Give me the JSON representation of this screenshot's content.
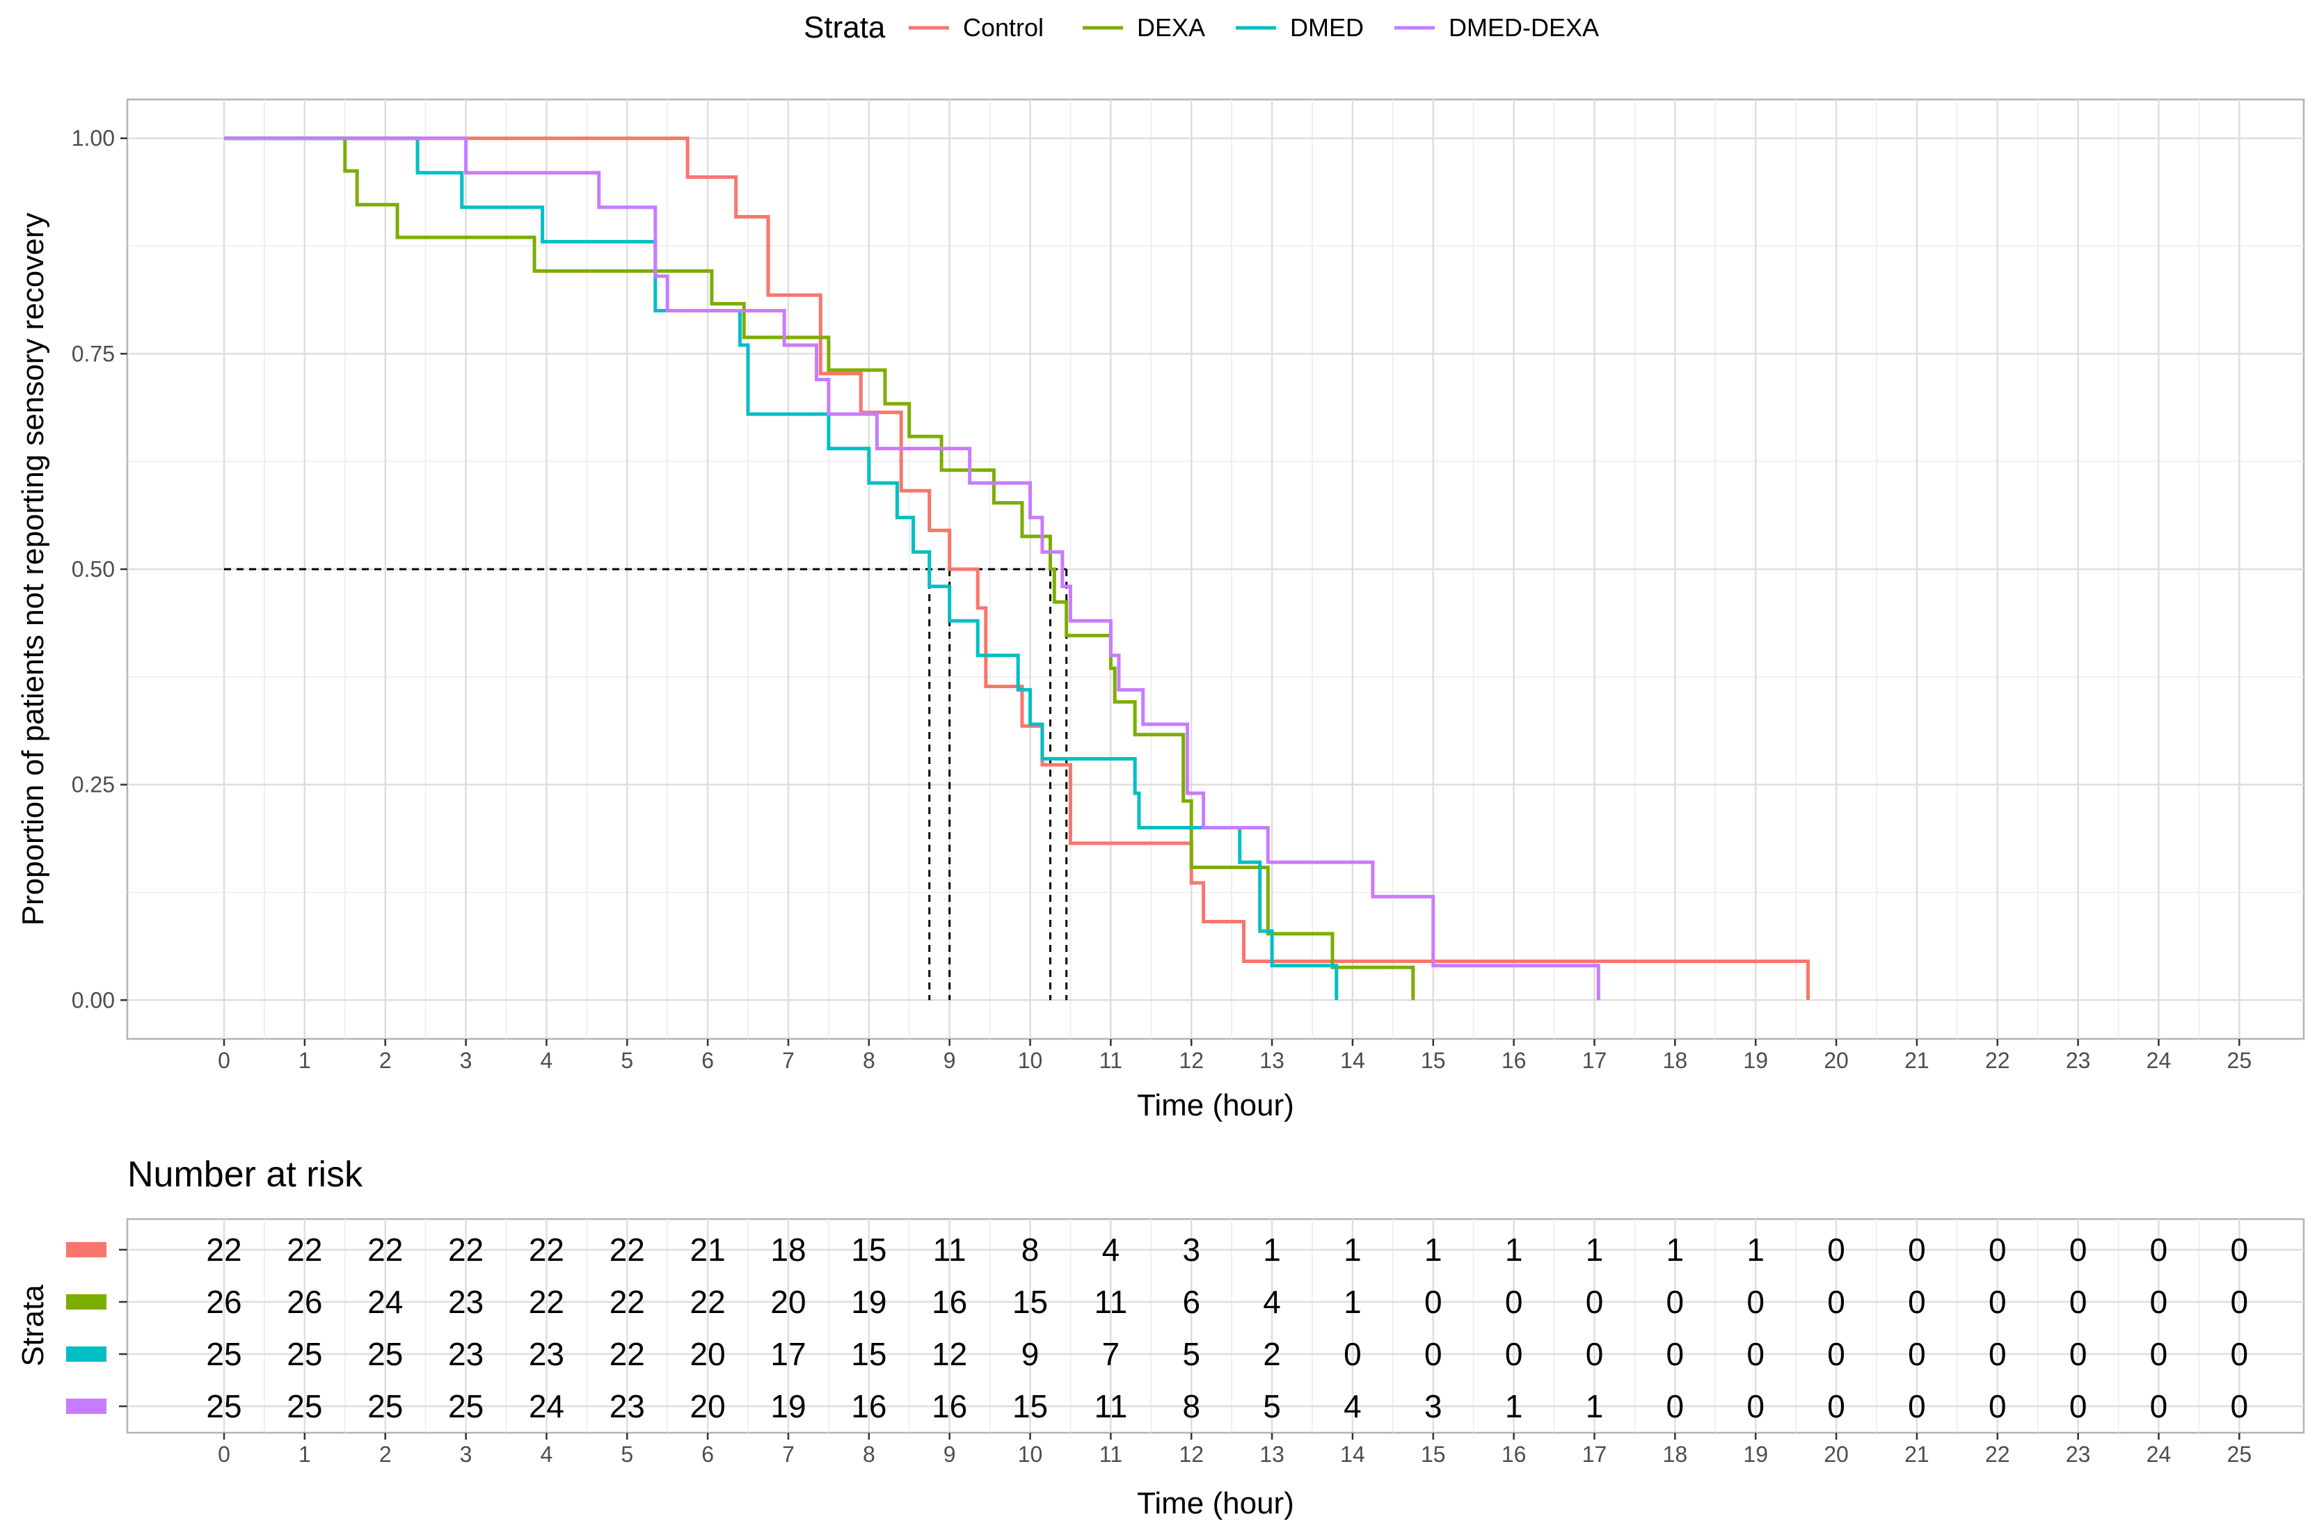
{
  "chart_data": {
    "type": "line",
    "subtype": "kaplan-meier step plot",
    "legend": {
      "title": "Strata",
      "position": "top"
    },
    "xlabel": "Time (hour)",
    "ylabel": "Proportion of patients not reporting sensory recovery",
    "xlim": [
      -1.2,
      25.8
    ],
    "ylim": [
      -0.045,
      1.045
    ],
    "x_ticks": [
      0,
      1,
      2,
      3,
      4,
      5,
      6,
      7,
      8,
      9,
      10,
      11,
      12,
      13,
      14,
      15,
      16,
      17,
      18,
      19,
      20,
      21,
      22,
      23,
      24,
      25
    ],
    "y_ticks": [
      {
        "value": 0,
        "label": "0.00"
      },
      {
        "value": 0.25,
        "label": "0.25"
      },
      {
        "value": 0.5,
        "label": "0.50"
      },
      {
        "value": 0.75,
        "label": "0.75"
      },
      {
        "value": 1.0,
        "label": "1.00"
      }
    ],
    "grid": true,
    "median_reference": {
      "y": 0.5,
      "x_from": 0,
      "median_times": [
        8.75,
        9.0,
        10.25,
        10.45
      ]
    },
    "series": [
      {
        "name": "Control",
        "color": "#F8766D",
        "x": [
          0,
          5.75,
          6.35,
          6.75,
          7.4,
          7.9,
          8.4,
          8.75,
          9.0,
          9.35,
          9.45,
          9.9,
          10.15,
          10.5,
          12.0,
          12.15,
          12.65,
          19.65
        ],
        "y": [
          1.0,
          0.955,
          0.909,
          0.818,
          0.727,
          0.682,
          0.591,
          0.545,
          0.5,
          0.455,
          0.364,
          0.318,
          0.273,
          0.182,
          0.136,
          0.091,
          0.045,
          0.0
        ]
      },
      {
        "name": "DEXA",
        "color": "#7CAE00",
        "x": [
          0,
          1.5,
          1.65,
          2.15,
          3.85,
          6.05,
          6.45,
          7.5,
          8.2,
          8.5,
          8.9,
          9.55,
          9.9,
          10.25,
          10.3,
          10.45,
          11.0,
          11.05,
          11.3,
          11.9,
          12.0,
          12.95,
          13.75,
          14.75
        ],
        "y": [
          1.0,
          0.962,
          0.923,
          0.885,
          0.846,
          0.808,
          0.769,
          0.731,
          0.692,
          0.654,
          0.615,
          0.577,
          0.538,
          0.5,
          0.462,
          0.423,
          0.385,
          0.346,
          0.308,
          0.231,
          0.154,
          0.077,
          0.038,
          0.0
        ]
      },
      {
        "name": "DMED",
        "color": "#00BFC4",
        "x": [
          0,
          2.4,
          2.95,
          3.95,
          5.35,
          5.9,
          6.4,
          6.5,
          7.5,
          8.0,
          8.35,
          8.55,
          8.75,
          9.0,
          9.35,
          9.85,
          10.0,
          10.15,
          11.3,
          11.35,
          12.6,
          12.85,
          13.0,
          13.8
        ],
        "y": [
          1.0,
          0.96,
          0.92,
          0.88,
          0.8,
          0.8,
          0.76,
          0.68,
          0.64,
          0.6,
          0.56,
          0.52,
          0.48,
          0.44,
          0.4,
          0.36,
          0.32,
          0.28,
          0.24,
          0.2,
          0.16,
          0.08,
          0.04,
          0.0
        ]
      },
      {
        "name": "DMED-DEXA",
        "color": "#C77CFF",
        "x": [
          0,
          3.0,
          4.65,
          5.35,
          5.5,
          6.95,
          7.35,
          7.5,
          8.1,
          8.4,
          9.25,
          10.0,
          10.15,
          10.4,
          10.5,
          11.0,
          11.1,
          11.4,
          11.95,
          12.15,
          12.95,
          14.25,
          15.0,
          17.05
        ],
        "y": [
          1.0,
          0.96,
          0.92,
          0.84,
          0.8,
          0.76,
          0.72,
          0.68,
          0.64,
          0.64,
          0.6,
          0.56,
          0.52,
          0.48,
          0.44,
          0.4,
          0.36,
          0.32,
          0.24,
          0.2,
          0.16,
          0.12,
          0.04,
          0.0
        ]
      }
    ],
    "risk_table": {
      "title": "Number at risk",
      "ylabel": "Strata",
      "xlabel": "Time (hour)",
      "times": [
        0,
        1,
        2,
        3,
        4,
        5,
        6,
        7,
        8,
        9,
        10,
        11,
        12,
        13,
        14,
        15,
        16,
        17,
        18,
        19,
        20,
        21,
        22,
        23,
        24,
        25
      ],
      "rows": [
        {
          "strata": "Control",
          "color": "#F8766D",
          "counts": [
            22,
            22,
            22,
            22,
            22,
            22,
            21,
            18,
            15,
            11,
            8,
            4,
            3,
            1,
            1,
            1,
            1,
            1,
            1,
            1,
            0,
            0,
            0,
            0,
            0,
            0
          ]
        },
        {
          "strata": "DEXA",
          "color": "#7CAE00",
          "counts": [
            26,
            26,
            24,
            23,
            22,
            22,
            22,
            20,
            19,
            16,
            15,
            11,
            6,
            4,
            1,
            0,
            0,
            0,
            0,
            0,
            0,
            0,
            0,
            0,
            0,
            0
          ]
        },
        {
          "strata": "DMED",
          "color": "#00BFC4",
          "counts": [
            25,
            25,
            25,
            23,
            23,
            22,
            20,
            17,
            15,
            12,
            9,
            7,
            5,
            2,
            0,
            0,
            0,
            0,
            0,
            0,
            0,
            0,
            0,
            0,
            0,
            0
          ]
        },
        {
          "strata": "DMED-DEXA",
          "color": "#C77CFF",
          "counts": [
            25,
            25,
            25,
            25,
            24,
            23,
            20,
            19,
            16,
            16,
            15,
            11,
            8,
            5,
            4,
            3,
            1,
            1,
            0,
            0,
            0,
            0,
            0,
            0,
            0,
            0
          ]
        }
      ]
    }
  }
}
